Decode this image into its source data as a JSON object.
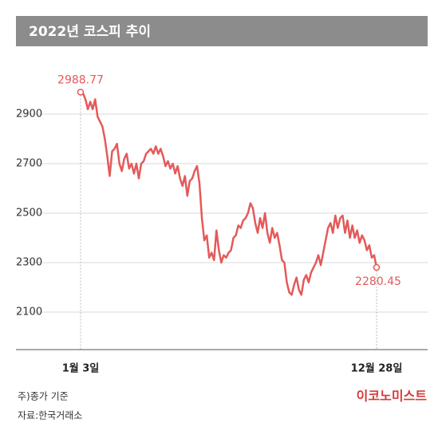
{
  "chart_data": {
    "type": "line",
    "title": "2022년 코스피 추이",
    "note": "주)종가 기준",
    "source": "자료:한국거래소",
    "brand": "이코노미스트",
    "color": "#e35a5a",
    "grid": true,
    "ylim": [
      1950,
      3150
    ],
    "yticks": [
      2100,
      2300,
      2500,
      2700,
      2900
    ],
    "categories": [
      "1월 3일",
      null,
      null,
      null,
      null,
      null,
      null,
      null,
      null,
      null,
      null,
      null,
      null,
      null,
      null,
      null,
      null,
      null,
      null,
      null,
      null,
      null,
      null,
      null,
      null,
      null,
      null,
      null,
      null,
      null,
      null,
      null,
      null,
      null,
      null,
      null,
      null,
      null,
      null,
      null,
      null,
      null,
      null,
      null,
      null,
      null,
      null,
      null,
      null,
      null,
      null,
      null,
      null,
      null,
      null,
      null,
      null,
      null,
      null,
      null,
      null,
      null,
      null,
      null,
      null,
      null,
      null,
      null,
      null,
      null,
      null,
      null,
      null,
      null,
      null,
      null,
      null,
      null,
      null,
      null,
      null,
      null,
      null,
      null,
      null,
      null,
      null,
      null,
      null,
      null,
      null,
      null,
      null,
      null,
      null,
      null,
      null,
      null,
      null,
      null,
      null,
      null,
      null,
      null,
      null,
      null,
      null,
      null,
      null,
      null,
      null,
      null,
      null,
      null,
      null,
      null,
      null,
      null,
      null,
      null,
      null,
      null,
      "12월 28일"
    ],
    "values": [
      2988.77,
      2985,
      2960,
      2920,
      2950,
      2920,
      2960,
      2890,
      2870,
      2850,
      2800,
      2730,
      2650,
      2750,
      2760,
      2780,
      2700,
      2670,
      2720,
      2740,
      2680,
      2700,
      2660,
      2700,
      2640,
      2700,
      2710,
      2740,
      2750,
      2760,
      2740,
      2770,
      2740,
      2760,
      2730,
      2690,
      2710,
      2680,
      2700,
      2660,
      2690,
      2640,
      2610,
      2650,
      2570,
      2630,
      2640,
      2670,
      2690,
      2620,
      2480,
      2390,
      2410,
      2320,
      2340,
      2310,
      2430,
      2350,
      2300,
      2330,
      2320,
      2340,
      2350,
      2400,
      2410,
      2450,
      2440,
      2470,
      2480,
      2500,
      2540,
      2520,
      2460,
      2420,
      2480,
      2440,
      2500,
      2420,
      2380,
      2440,
      2400,
      2420,
      2370,
      2310,
      2300,
      2220,
      2180,
      2170,
      2210,
      2240,
      2190,
      2170,
      2230,
      2250,
      2220,
      2260,
      2280,
      2300,
      2330,
      2290,
      2340,
      2390,
      2440,
      2460,
      2420,
      2490,
      2440,
      2480,
      2490,
      2420,
      2470,
      2400,
      2450,
      2400,
      2430,
      2380,
      2410,
      2390,
      2350,
      2370,
      2320,
      2330,
      2280.45
    ]
  }
}
